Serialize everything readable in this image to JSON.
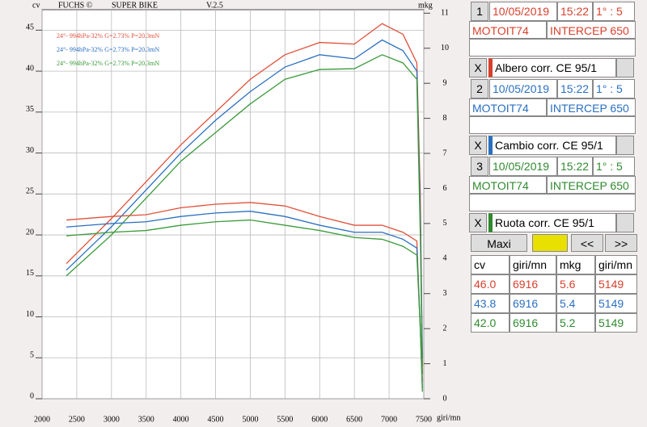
{
  "chart_data": {
    "type": "line",
    "header": {
      "cv": "cv",
      "brand": "FUCHS ©",
      "program": "SUPER BIKE",
      "version": "V.2.5",
      "mkg": "mkg"
    },
    "x_label": "giri/mn",
    "x": [
      2350,
      3000,
      3500,
      4000,
      4500,
      5000,
      5500,
      6000,
      6500,
      6900,
      7200,
      7400,
      7450,
      7480
    ],
    "xlim": [
      2000,
      7500
    ],
    "xticks": [
      2000,
      2500,
      3000,
      3500,
      4000,
      4500,
      5000,
      5500,
      6000,
      6500,
      7000,
      7500
    ],
    "ylim": [
      0,
      47.5
    ],
    "yticks": [
      0,
      5,
      10,
      15,
      20,
      25,
      30,
      35,
      40,
      45
    ],
    "y2lim": [
      0,
      11.1
    ],
    "y2ticks": [
      0,
      1,
      2,
      3,
      4,
      5,
      6,
      7,
      8,
      9,
      10,
      11
    ],
    "grid": true,
    "series": [
      {
        "name": "24°- 994hPa-32% G=2.73% P=20.3mN",
        "color": "#e0503a",
        "values": [
          16.5,
          22,
          26.5,
          31,
          35,
          39,
          42,
          43.5,
          43.3,
          45.8,
          44.5,
          41,
          25,
          4
        ]
      },
      {
        "name": "24°- 994hPa-32% G=2.73% P=20.3mN",
        "color": "#2a6fc0",
        "values": [
          15.7,
          21,
          25.5,
          30,
          34,
          37.5,
          40.5,
          42,
          41.5,
          43.8,
          42.5,
          40,
          22,
          5
        ]
      },
      {
        "name": "24°- 994hPa-32% G=2.73% P=20.3mN",
        "color": "#3a9a3a",
        "values": [
          15,
          20,
          24.5,
          29,
          32.5,
          36,
          39,
          40.2,
          40.3,
          42,
          41,
          39,
          20,
          3
        ]
      },
      {
        "color": "#e0503a",
        "axis": "y2",
        "values": [
          5.1,
          5.2,
          5.25,
          5.45,
          5.55,
          5.6,
          5.5,
          5.2,
          4.95,
          4.95,
          4.75,
          4.5,
          2,
          0.5
        ]
      },
      {
        "color": "#2a6fc0",
        "axis": "y2",
        "values": [
          4.9,
          5.0,
          5.05,
          5.2,
          5.3,
          5.35,
          5.2,
          4.95,
          4.75,
          4.75,
          4.55,
          4.3,
          2,
          0.3
        ]
      },
      {
        "color": "#3a9a3a",
        "axis": "y2",
        "values": [
          4.65,
          4.75,
          4.8,
          4.95,
          5.05,
          5.1,
          4.95,
          4.8,
          4.6,
          4.55,
          4.35,
          4.1,
          2,
          0.2
        ]
      }
    ]
  },
  "panel": {
    "runs": [
      {
        "number": "1",
        "date": "10/05/2019",
        "time": "15:22",
        "ratio": "1° : 5",
        "name": "MOTOIT74",
        "bike": "INTERCEP 650",
        "color": "#d8402c",
        "close": "X",
        "correction": "Albero corr. CE 95/1"
      },
      {
        "number": "2",
        "date": "10/05/2019",
        "time": "15:22",
        "ratio": "1° : 5",
        "name": "MOTOIT74",
        "bike": "INTERCEP 650",
        "color": "#2a6fc0",
        "close": "X",
        "correction": "Cambio corr. CE 95/1"
      },
      {
        "number": "3",
        "date": "10/05/2019",
        "time": "15:22",
        "ratio": "1° : 5",
        "name": "MOTOIT74",
        "bike": "INTERCEP 650",
        "color": "#2f8a2f",
        "close": "X",
        "correction": "Ruota corr. CE 95/1"
      }
    ],
    "buttons": {
      "maxi": "Maxi",
      "prev": "<<",
      "next": ">>"
    },
    "table": {
      "header": [
        "cv",
        "giri/mn",
        "mkg",
        "giri/mn"
      ],
      "rows": [
        [
          "46.0",
          "6916",
          "5.6",
          "5149"
        ],
        [
          "43.8",
          "6916",
          "5.4",
          "5149"
        ],
        [
          "42.0",
          "6916",
          "5.2",
          "5149"
        ]
      ]
    }
  }
}
